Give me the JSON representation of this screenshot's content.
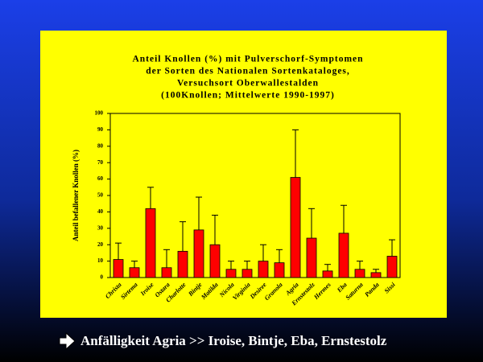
{
  "chart_data": {
    "type": "bar",
    "title": [
      "Anteil Knollen (%) mit Pulverschorf-Symptomen",
      "der Sorten des Nationalen Sortenkataloges,",
      "Versuchsort Oberwallestalden",
      "(100Knollen; Mittelwerte 1990-1997)"
    ],
    "y_label": "Anteil befallener Knollen (%)",
    "categories": [
      "Christa",
      "Sirtema",
      "Iroise",
      "Ostara",
      "Charlotte",
      "Bintje",
      "Matilda",
      "Nicola",
      "Virginia",
      "Desiree",
      "Granola",
      "Agria",
      "Ernstestolz",
      "Hermes",
      "Eba",
      "Saturna",
      "Panda",
      "Sissi"
    ],
    "values": [
      11,
      6,
      42,
      6,
      16,
      29,
      20,
      5,
      5,
      10,
      9,
      61,
      24,
      4,
      27,
      5,
      3,
      13
    ],
    "errors": [
      10,
      4,
      13,
      11,
      18,
      20,
      18,
      5,
      5,
      10,
      8,
      29,
      18,
      4,
      17,
      5,
      2,
      10
    ],
    "color": "#ff0000",
    "error_color": "#000000",
    "ylim": [
      0,
      100
    ],
    "yticks": [
      0,
      10,
      20,
      30,
      40,
      50,
      60,
      70,
      80,
      90,
      100
    ],
    "grid": false
  },
  "footer": "Anfälligkeit Agria >> Iroise, Bintje, Eba, Ernstestolz"
}
